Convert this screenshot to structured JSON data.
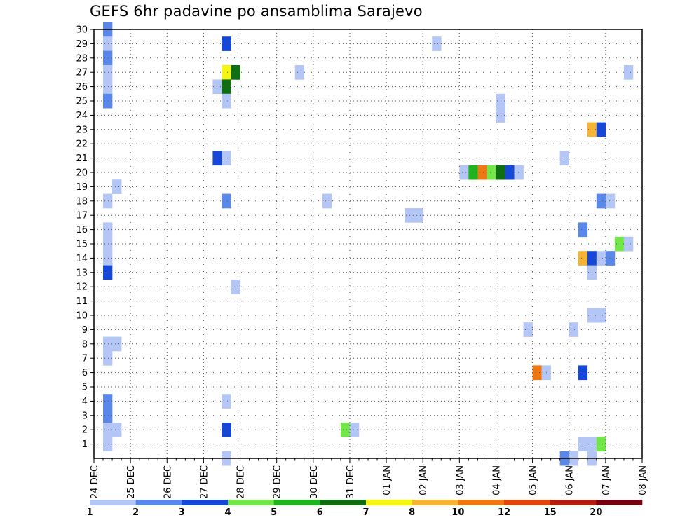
{
  "title": "GEFS 6hr padavine po ansamblima Sarajevo",
  "chart_data": {
    "type": "heatmap",
    "title": "GEFS 6hr padavine po ansamblima Sarajevo",
    "xlabel": "",
    "ylabel": "",
    "x_tick_labels": [
      "24 DEC",
      "25 DEC",
      "26 DEC",
      "27 DEC",
      "28 DEC",
      "29 DEC",
      "30 DEC",
      "31 DEC",
      "01 JAN",
      "02 JAN",
      "03 JAN",
      "04 JAN",
      "05 JAN",
      "06 JAN",
      "07 JAN",
      "08 JAN"
    ],
    "y_tick_labels": [
      "1",
      "2",
      "3",
      "4",
      "5",
      "6",
      "7",
      "8",
      "9",
      "10",
      "11",
      "12",
      "13",
      "14",
      "15",
      "16",
      "17",
      "18",
      "19",
      "20",
      "21",
      "22",
      "23",
      "24",
      "25",
      "26",
      "27",
      "28",
      "29",
      "30"
    ],
    "xlim_steps": [
      0,
      60
    ],
    "ylim": [
      0,
      30
    ],
    "grid": true,
    "colorbar": {
      "labels": [
        "1",
        "2",
        "3",
        "4",
        "5",
        "6",
        "7",
        "8",
        "10",
        "12",
        "15",
        "20"
      ],
      "colors": [
        "#b4c6f5",
        "#5a87ea",
        "#1548d8",
        "#73e64a",
        "#1eb41e",
        "#0f6e0f",
        "#f5f50f",
        "#f5b432",
        "#f07814",
        "#e1460f",
        "#b41e0f",
        "#73000f"
      ]
    },
    "cells": [
      {
        "x": 1,
        "y": 30,
        "c": 1
      },
      {
        "x": 1,
        "y": 29,
        "c": 0
      },
      {
        "x": 1,
        "y": 28,
        "c": 1
      },
      {
        "x": 1,
        "y": 27,
        "c": 0
      },
      {
        "x": 1,
        "y": 26,
        "c": 0
      },
      {
        "x": 1,
        "y": 25,
        "c": 1
      },
      {
        "x": 1,
        "y": 18,
        "c": 0
      },
      {
        "x": 1,
        "y": 16,
        "c": 0
      },
      {
        "x": 1,
        "y": 15,
        "c": 0
      },
      {
        "x": 1,
        "y": 14,
        "c": 0
      },
      {
        "x": 1,
        "y": 13,
        "c": 2
      },
      {
        "x": 1,
        "y": 8,
        "c": 0
      },
      {
        "x": 1,
        "y": 7,
        "c": 0
      },
      {
        "x": 1,
        "y": 4,
        "c": 1
      },
      {
        "x": 1,
        "y": 3,
        "c": 1
      },
      {
        "x": 1,
        "y": 2,
        "c": 0
      },
      {
        "x": 1,
        "y": 1,
        "c": 0
      },
      {
        "x": 2,
        "y": 19,
        "c": 0
      },
      {
        "x": 2,
        "y": 8,
        "c": 0
      },
      {
        "x": 2,
        "y": 2,
        "c": 0
      },
      {
        "x": 13,
        "y": 26,
        "c": 0
      },
      {
        "x": 13,
        "y": 21,
        "c": 2
      },
      {
        "x": 14,
        "y": 29,
        "c": 2
      },
      {
        "x": 14,
        "y": 27,
        "c": 6
      },
      {
        "x": 14,
        "y": 26,
        "c": 5
      },
      {
        "x": 14,
        "y": 25,
        "c": 0
      },
      {
        "x": 14,
        "y": 21,
        "c": 0
      },
      {
        "x": 14,
        "y": 18,
        "c": 1
      },
      {
        "x": 14,
        "y": 4,
        "c": 0
      },
      {
        "x": 14,
        "y": 2,
        "c": 2
      },
      {
        "x": 14,
        "y": 0,
        "c": 0
      },
      {
        "x": 15,
        "y": 27,
        "c": 5
      },
      {
        "x": 15,
        "y": 12,
        "c": 0
      },
      {
        "x": 22,
        "y": 27,
        "c": 0
      },
      {
        "x": 25,
        "y": 18,
        "c": 0
      },
      {
        "x": 27,
        "y": 2,
        "c": 3
      },
      {
        "x": 28,
        "y": 2,
        "c": 0
      },
      {
        "x": 34,
        "y": 17,
        "c": 0
      },
      {
        "x": 35,
        "y": 17,
        "c": 0
      },
      {
        "x": 37,
        "y": 29,
        "c": 0
      },
      {
        "x": 40,
        "y": 20,
        "c": 0
      },
      {
        "x": 41,
        "y": 20,
        "c": 4
      },
      {
        "x": 42,
        "y": 20,
        "c": 8
      },
      {
        "x": 43,
        "y": 20,
        "c": 3
      },
      {
        "x": 44,
        "y": 20,
        "c": 5
      },
      {
        "x": 45,
        "y": 20,
        "c": 2
      },
      {
        "x": 46,
        "y": 20,
        "c": 0
      },
      {
        "x": 44,
        "y": 25,
        "c": 0
      },
      {
        "x": 44,
        "y": 24,
        "c": 0
      },
      {
        "x": 47,
        "y": 9,
        "c": 0
      },
      {
        "x": 48,
        "y": 6,
        "c": 8
      },
      {
        "x": 49,
        "y": 6,
        "c": 0
      },
      {
        "x": 51,
        "y": 21,
        "c": 0
      },
      {
        "x": 51,
        "y": 0,
        "c": 1
      },
      {
        "x": 52,
        "y": 9,
        "c": 0
      },
      {
        "x": 52,
        "y": 0,
        "c": 0
      },
      {
        "x": 53,
        "y": 16,
        "c": 1
      },
      {
        "x": 53,
        "y": 14,
        "c": 7
      },
      {
        "x": 53,
        "y": 6,
        "c": 2
      },
      {
        "x": 53,
        "y": 1,
        "c": 0
      },
      {
        "x": 54,
        "y": 23,
        "c": 7
      },
      {
        "x": 54,
        "y": 14,
        "c": 2
      },
      {
        "x": 54,
        "y": 13,
        "c": 0
      },
      {
        "x": 54,
        "y": 10,
        "c": 0
      },
      {
        "x": 54,
        "y": 1,
        "c": 0
      },
      {
        "x": 54,
        "y": 0,
        "c": 0
      },
      {
        "x": 55,
        "y": 23,
        "c": 2
      },
      {
        "x": 55,
        "y": 18,
        "c": 1
      },
      {
        "x": 55,
        "y": 14,
        "c": 0
      },
      {
        "x": 55,
        "y": 10,
        "c": 0
      },
      {
        "x": 55,
        "y": 1,
        "c": 3
      },
      {
        "x": 56,
        "y": 18,
        "c": 0
      },
      {
        "x": 56,
        "y": 14,
        "c": 1
      },
      {
        "x": 57,
        "y": 15,
        "c": 3
      },
      {
        "x": 58,
        "y": 27,
        "c": 0
      },
      {
        "x": 58,
        "y": 15,
        "c": 0
      }
    ]
  }
}
